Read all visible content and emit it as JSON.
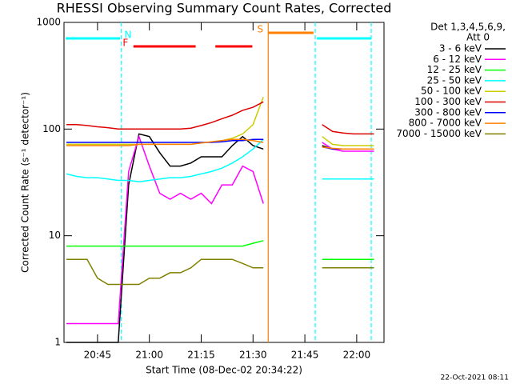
{
  "chart_data": {
    "type": "line",
    "title": "RHESSI Observing Summary Count Rates, Corrected",
    "x_label": "Start Time (08-Dec-02 20:34:22)",
    "y_label": "Corrected Count Rate (s⁻¹ detector⁻¹)",
    "legend_title": [
      "Det 1,3,4,5,6,9,",
      "Att 0"
    ],
    "footer": "22-Oct-2021 08:11",
    "y_log": true,
    "xlim": [
      1235.3,
      1327.9
    ],
    "ylim": [
      1,
      1000
    ],
    "yticks": [
      1,
      10,
      100,
      1000
    ],
    "xticks": [
      {
        "value": 1245,
        "label": "20:45"
      },
      {
        "value": 1260,
        "label": "21:00"
      },
      {
        "value": 1275,
        "label": "21:15"
      },
      {
        "value": 1290,
        "label": "21:30"
      },
      {
        "value": 1305,
        "label": "21:45"
      },
      {
        "value": 1320,
        "label": "22:00"
      }
    ],
    "x": [
      1236,
      1239,
      1242,
      1245,
      1248,
      1251,
      1254,
      1257,
      1260,
      1263,
      1266,
      1269,
      1272,
      1275,
      1278,
      1281,
      1284,
      1287,
      1290,
      1293,
      1300,
      1310,
      1313,
      1316,
      1319,
      1322,
      1325
    ],
    "series": [
      {
        "name": "3 - 6 keV",
        "color": "#000000",
        "values": [
          1,
          1,
          1,
          1,
          1,
          1,
          30,
          90,
          85,
          60,
          45,
          45,
          48,
          55,
          55,
          55,
          70,
          85,
          70,
          65,
          null,
          70,
          65,
          65,
          65,
          65,
          65
        ]
      },
      {
        "name": "6 - 12 keV",
        "color": "#ff00ff",
        "values": [
          1.5,
          1.5,
          1.5,
          1.5,
          1.5,
          1.5,
          40,
          85,
          45,
          25,
          22,
          25,
          22,
          25,
          20,
          30,
          30,
          45,
          40,
          20,
          null,
          75,
          65,
          62,
          62,
          62,
          62
        ]
      },
      {
        "name": "12 - 25 keV",
        "color": "#00ff00",
        "values": [
          8,
          8,
          8,
          8,
          8,
          8,
          8,
          8,
          8,
          8,
          8,
          8,
          8,
          8,
          8,
          8,
          8,
          8,
          8.5,
          9,
          null,
          6,
          6,
          6,
          6,
          6,
          6
        ]
      },
      {
        "name": "25 - 50 keV",
        "color": "#00ffff",
        "values": [
          38,
          36,
          35,
          35,
          34,
          33,
          33,
          32,
          33,
          34,
          35,
          35,
          36,
          38,
          40,
          43,
          48,
          55,
          65,
          80,
          null,
          34,
          34,
          34,
          34,
          34,
          34
        ]
      },
      {
        "name": "50 - 100 keV",
        "color": "#cccc00",
        "values": [
          72,
          72,
          72,
          72,
          72,
          72,
          72,
          72,
          72,
          72,
          72,
          72,
          72,
          74,
          76,
          78,
          82,
          90,
          110,
          200,
          null,
          85,
          72,
          70,
          70,
          70,
          70
        ]
      },
      {
        "name": "100 - 300 keV",
        "color": "#dd0000",
        "values": [
          110,
          110,
          108,
          105,
          103,
          100,
          100,
          100,
          100,
          100,
          100,
          100,
          102,
          108,
          115,
          125,
          135,
          150,
          160,
          180,
          null,
          110,
          95,
          92,
          90,
          90,
          90
        ]
      },
      {
        "name": "300 - 800 keV",
        "color": "#0000ff",
        "values": [
          75,
          75,
          75,
          75,
          75,
          75,
          75,
          75,
          75,
          75,
          75,
          75,
          75,
          75,
          75,
          76,
          78,
          78,
          80,
          80,
          null,
          68,
          65,
          65,
          65,
          65,
          65
        ]
      },
      {
        "name": "800 - 7000 keV",
        "color": "#ff8000",
        "values": [
          70,
          70,
          70,
          70,
          70,
          70,
          70,
          72,
          72,
          72,
          72,
          72,
          72,
          74,
          76,
          78,
          80,
          80,
          78,
          75,
          null,
          68,
          66,
          65,
          65,
          65,
          65
        ]
      },
      {
        "name": "7000 - 15000 keV",
        "color": "#808000",
        "values": [
          6,
          6,
          6,
          4,
          3.5,
          3.5,
          3.5,
          3.5,
          4,
          4,
          4.5,
          4.5,
          5,
          6,
          6,
          6,
          6,
          5.5,
          5,
          5,
          null,
          5,
          5,
          5,
          5,
          5,
          5
        ]
      }
    ],
    "flags": [
      {
        "label": "N",
        "color": "#00ffff",
        "ranges": [
          [
            1235.8,
            1251.5
          ],
          [
            1308.5,
            1324.2
          ]
        ]
      },
      {
        "label": "F",
        "color": "#ff0000",
        "ranges": [
          [
            1255.4,
            1273.4
          ],
          [
            1279.1,
            1289.8
          ]
        ]
      },
      {
        "label": "S",
        "color": "#ff8000",
        "ranges": [
          [
            1294.4,
            1307.5
          ]
        ]
      }
    ],
    "vlines": [
      {
        "x": 1251.9,
        "color": "#00ffff",
        "dashed": true
      },
      {
        "x": 1294.4,
        "color": "#ff8000",
        "dashed": false
      },
      {
        "x": 1308.0,
        "color": "#00ffff",
        "dashed": true
      },
      {
        "x": 1324.2,
        "color": "#00ffff",
        "dashed": true
      }
    ]
  }
}
